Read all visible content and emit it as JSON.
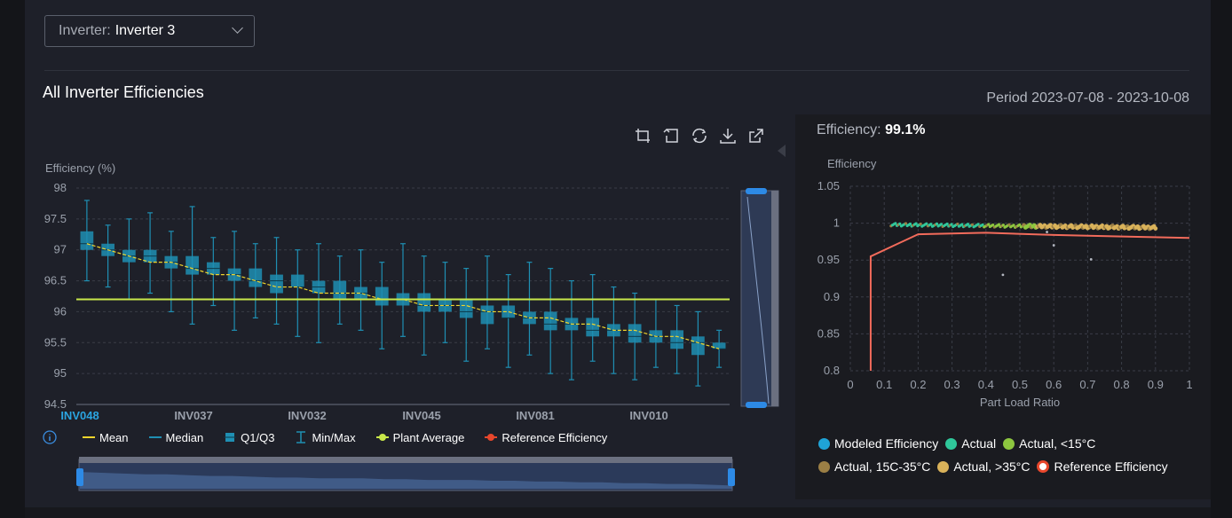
{
  "filter": {
    "label": "Inverter:",
    "value": "Inverter 3"
  },
  "section_title": "All Inverter Efficiencies",
  "period": "Period 2023-07-08 - 2023-10-08",
  "efficiency_readout": {
    "label": "Efficiency:",
    "value": "99.1%"
  },
  "colors": {
    "box": "#1f8fb3",
    "mean": "#f0d52c",
    "plant_average": "#c9e84a",
    "reference": "#f26b5b",
    "modeled": "#1fa3d6",
    "actual": "#2fc79a",
    "actual_lt15": "#8dc63f",
    "actual_15_35": "#9b7f45",
    "actual_gt35": "#d9b25a"
  },
  "legend_left": {
    "mean": "Mean",
    "median": "Median",
    "q1q3": "Q1/Q3",
    "minmax": "Min/Max",
    "plant_average": "Plant Average",
    "reference": "Reference Efficiency"
  },
  "legend_right": {
    "modeled": "Modeled Efficiency",
    "actual": "Actual",
    "actual_lt15": "Actual, <15°C",
    "actual_15_35": "Actual, 15C-35°C",
    "actual_gt35": "Actual, >35°C",
    "reference": "Reference Efficiency"
  },
  "chart_data": [
    {
      "type": "box",
      "ylabel": "Efficiency (%)",
      "ylim": [
        94.5,
        98
      ],
      "yticks": [
        94.5,
        95,
        95.5,
        96,
        96.5,
        97,
        97.5,
        98
      ],
      "x_tick_labels": [
        "INV048",
        "INV037",
        "INV032",
        "INV045",
        "INV081",
        "INV010"
      ],
      "plant_average": 96.2,
      "series": {
        "q1": [
          97.0,
          96.9,
          96.8,
          96.8,
          96.7,
          96.6,
          96.6,
          96.5,
          96.4,
          96.3,
          96.4,
          96.3,
          96.2,
          96.2,
          96.1,
          96.1,
          96.0,
          96.0,
          95.9,
          95.8,
          95.9,
          95.8,
          95.7,
          95.7,
          95.6,
          95.6,
          95.5,
          95.5,
          95.4,
          95.3,
          95.4
        ],
        "q3": [
          97.3,
          97.1,
          97.0,
          97.0,
          96.9,
          96.9,
          96.8,
          96.7,
          96.7,
          96.6,
          96.6,
          96.5,
          96.5,
          96.4,
          96.4,
          96.3,
          96.3,
          96.2,
          96.2,
          96.1,
          96.1,
          96.0,
          96.0,
          95.9,
          95.9,
          95.8,
          95.8,
          95.7,
          95.7,
          95.6,
          95.5
        ],
        "mean": [
          97.1,
          97.0,
          96.9,
          96.8,
          96.8,
          96.7,
          96.6,
          96.6,
          96.5,
          96.4,
          96.4,
          96.3,
          96.3,
          96.3,
          96.2,
          96.2,
          96.1,
          96.1,
          96.1,
          96.0,
          96.0,
          95.9,
          95.9,
          95.8,
          95.8,
          95.7,
          95.7,
          95.6,
          95.6,
          95.5,
          95.4
        ],
        "median": [
          97.1,
          97.0,
          96.9,
          96.9,
          96.8,
          96.7,
          96.7,
          96.6,
          96.5,
          96.5,
          96.4,
          96.4,
          96.3,
          96.3,
          96.2,
          96.2,
          96.1,
          96.1,
          96.0,
          96.0,
          95.9,
          95.9,
          95.8,
          95.8,
          95.7,
          95.7,
          95.6,
          95.6,
          95.5,
          95.5,
          95.4
        ],
        "min": [
          96.5,
          96.4,
          96.2,
          96.3,
          96.0,
          95.8,
          96.1,
          95.7,
          95.9,
          95.8,
          95.6,
          95.5,
          95.8,
          95.7,
          95.4,
          95.6,
          95.3,
          95.5,
          95.2,
          95.4,
          95.1,
          95.3,
          95.0,
          94.9,
          95.2,
          95.0,
          94.9,
          95.1,
          95.0,
          94.8,
          95.1
        ],
        "max": [
          97.8,
          97.4,
          97.5,
          97.6,
          97.3,
          97.7,
          97.2,
          97.3,
          97.1,
          97.2,
          97.0,
          97.1,
          96.9,
          97.0,
          96.8,
          97.1,
          96.9,
          96.8,
          96.7,
          96.9,
          96.6,
          96.8,
          96.7,
          96.5,
          96.6,
          96.4,
          96.3,
          96.2,
          96.1,
          96.0,
          95.7
        ]
      }
    },
    {
      "type": "scatter",
      "xlabel": "Part Load Ratio",
      "ylabel": "Efficiency",
      "xlim": [
        0,
        1
      ],
      "ylim": [
        0.8,
        1.05
      ],
      "xticks": [
        0,
        0.1,
        0.2,
        0.3,
        0.4,
        0.5,
        0.6,
        0.7,
        0.8,
        0.9,
        1
      ],
      "yticks": [
        0.8,
        0.85,
        0.9,
        0.95,
        1,
        1.05
      ],
      "reference_curve": {
        "x": [
          0.06,
          0.06,
          0.2,
          0.4,
          0.6,
          0.8,
          1.0
        ],
        "y": [
          0.8,
          0.955,
          0.985,
          0.987,
          0.984,
          0.982,
          0.98
        ]
      },
      "actual_band": {
        "x_start": 0.12,
        "x_end": 0.9,
        "y_start": 0.998,
        "y_end": 0.994
      },
      "outliers": [
        {
          "x": 0.45,
          "y": 0.93
        },
        {
          "x": 0.6,
          "y": 0.97
        },
        {
          "x": 0.71,
          "y": 0.951
        },
        {
          "x": 0.58,
          "y": 0.988
        }
      ]
    }
  ]
}
